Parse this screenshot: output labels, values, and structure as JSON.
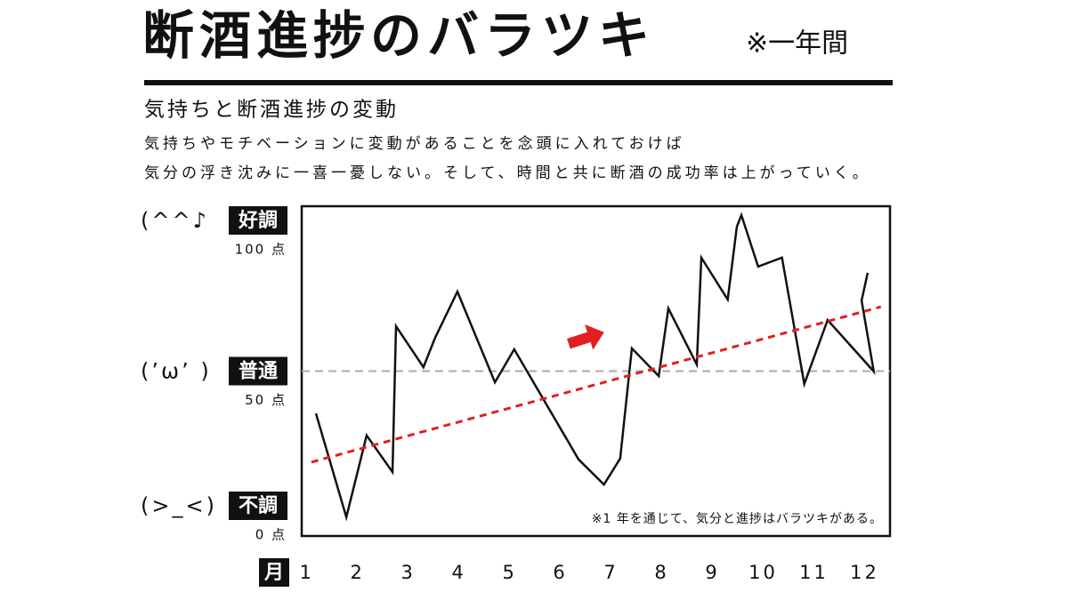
{
  "chart_data": {
    "type": "line",
    "title": "断酒進捗のバラツキ",
    "title_note": "※一年間",
    "subtitle": "気持ちと断酒進捗の変動",
    "description": [
      "気持ちやモチベーションに変動があることを念頭に入れておけば",
      "気分の浮き沈みに一喜一憂しない。そして、時間と共に断酒の成功率は上がっていく。"
    ],
    "x_label": "月",
    "annotation": "※1 年を通じて、気分と進捗はバラツキがある。",
    "xlim": [
      0.9,
      12.5
    ],
    "xticks": [
      1,
      2,
      3,
      4,
      5,
      6,
      7,
      8,
      9,
      10,
      11,
      12
    ],
    "ylim": [
      0,
      100
    ],
    "yticks": [
      {
        "value": 100,
        "label": "100 点"
      },
      {
        "value": 50,
        "label": "50 点"
      },
      {
        "value": 0,
        "label": "0 点"
      }
    ],
    "levels": [
      {
        "face": "(^^♪",
        "name": "好調"
      },
      {
        "face": "(’ω’ )",
        "name": "普通"
      },
      {
        "face": "(>_<)",
        "name": "不調"
      }
    ],
    "reference_y": 50,
    "series": [
      {
        "color": "#111111",
        "dashed": false,
        "x": [
          1.18,
          1.78,
          2.18,
          2.69,
          2.76,
          3.3,
          3.53,
          3.97,
          4.71,
          5.09,
          6.36,
          6.86,
          7.18,
          7.41,
          7.94,
          8.13,
          8.69,
          8.78,
          9.3,
          9.48,
          9.57,
          9.9,
          10.37,
          10.81,
          11.27,
          12.18,
          11.94,
          12.06
        ],
        "values": [
          37.2,
          5.7,
          30.5,
          19.4,
          63.6,
          51.2,
          60.1,
          74.1,
          46.6,
          56.6,
          23.2,
          15.6,
          23.5,
          56.9,
          48.5,
          69.0,
          52.0,
          84.4,
          71.7,
          93.8,
          97.3,
          81.7,
          84.4,
          46.1,
          65.5,
          49.9,
          71.4,
          79.8
        ]
      },
      {
        "color": "#e02020",
        "dashed": true,
        "x": [
          1.09,
          12.32
        ],
        "values": [
          22.4,
          69.5
        ]
      }
    ]
  }
}
